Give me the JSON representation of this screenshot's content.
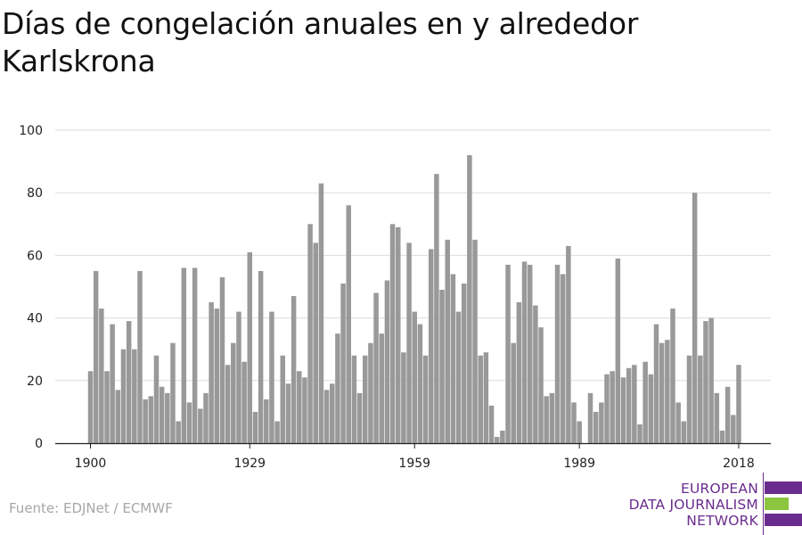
{
  "title": "Días de congelación anuales en y alrededor Karlskrona",
  "source": "Fuente: EDJNet / ECMWF",
  "logo": {
    "lines": [
      "EUROPEAN",
      "DATA JOURNALISM",
      "NETWORK"
    ],
    "colors": {
      "purple": "#6a2c8e",
      "green": "#8cc63f"
    }
  },
  "chart_data": {
    "type": "bar",
    "title": "Días de congelación anuales en y alrededor Karlskrona",
    "xlabel": "",
    "ylabel": "",
    "x_start": 1900,
    "x_end": 2018,
    "xticks": [
      1900,
      1929,
      1959,
      1989,
      2018
    ],
    "yticks": [
      0,
      20,
      40,
      60,
      80,
      100
    ],
    "ylim": [
      0,
      100
    ],
    "grid": true,
    "bar_color": "#999999",
    "values": [
      23,
      55,
      43,
      23,
      38,
      17,
      30,
      39,
      30,
      55,
      14,
      15,
      28,
      18,
      16,
      32,
      7,
      56,
      13,
      56,
      11,
      16,
      45,
      43,
      53,
      25,
      32,
      42,
      26,
      61,
      10,
      55,
      14,
      42,
      7,
      28,
      19,
      47,
      23,
      21,
      70,
      64,
      83,
      17,
      19,
      35,
      51,
      76,
      28,
      16,
      28,
      32,
      48,
      35,
      52,
      70,
      69,
      29,
      64,
      42,
      38,
      28,
      62,
      86,
      49,
      65,
      54,
      42,
      51,
      92,
      65,
      28,
      29,
      12,
      2,
      4,
      57,
      32,
      45,
      58,
      57,
      44,
      37,
      15,
      16,
      57,
      54,
      63,
      13,
      7,
      0,
      16,
      10,
      13,
      22,
      23,
      59,
      21,
      24,
      25,
      6,
      26,
      22,
      38,
      32,
      33,
      43,
      13,
      7,
      28,
      80,
      28,
      39,
      40,
      16,
      4,
      18,
      9,
      25
    ]
  }
}
